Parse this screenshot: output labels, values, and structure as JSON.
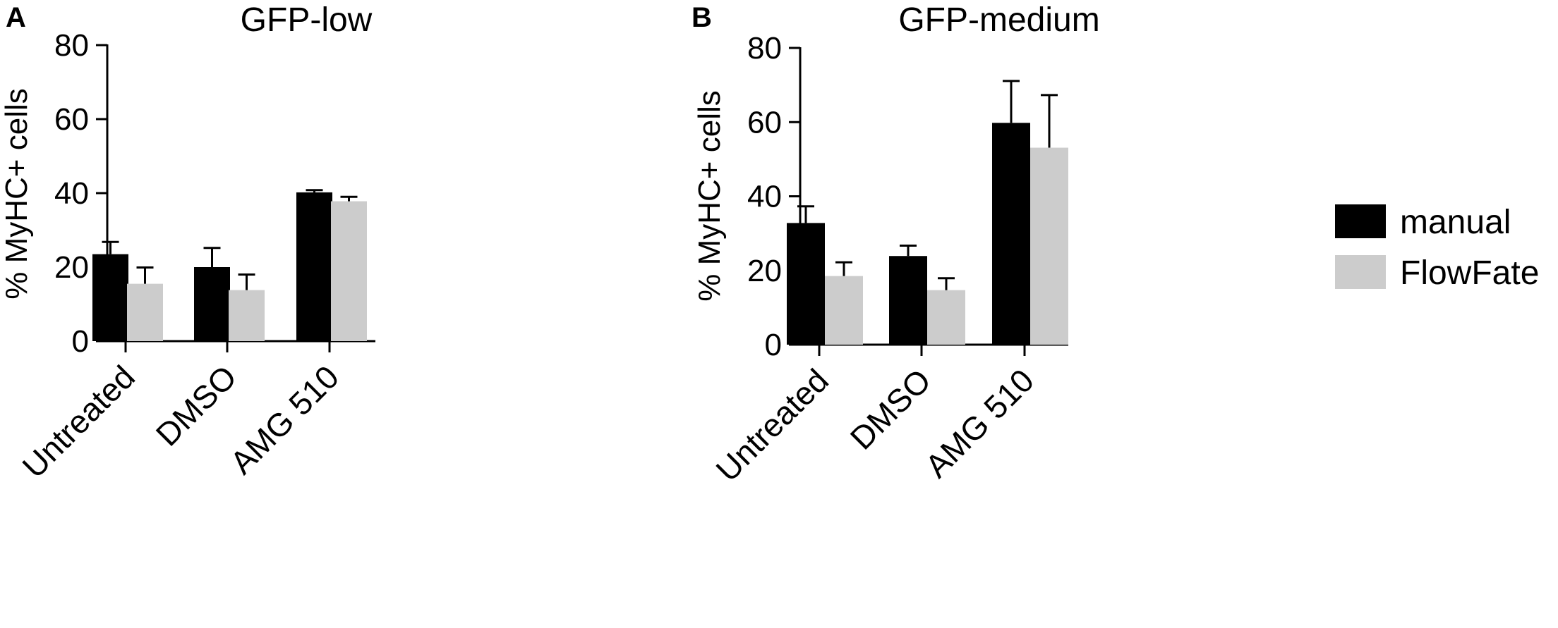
{
  "chart_data": [
    {
      "panel_label": "A",
      "type": "bar",
      "title": "GFP-low",
      "xlabel": "",
      "ylabel": "% MyHC+ cells",
      "ylim": [
        0,
        80
      ],
      "yticks": [
        "0",
        "20",
        "40",
        "60",
        "80"
      ],
      "categories": [
        "Untreated",
        "DMSO",
        "AMG 510"
      ],
      "series": [
        {
          "name": "manual",
          "color": "#000000",
          "values": [
            23.5,
            20,
            40.2
          ],
          "errors": [
            3.3,
            5.2,
            0.6
          ]
        },
        {
          "name": "FlowFate",
          "color": "#cccccc",
          "values": [
            15.5,
            13.8,
            37.8
          ],
          "errors": [
            4.4,
            4.2,
            1.2
          ]
        }
      ]
    },
    {
      "panel_label": "B",
      "type": "bar",
      "title": "GFP-medium",
      "xlabel": "",
      "ylabel": "% MyHC+ cells",
      "ylim": [
        0,
        80
      ],
      "yticks": [
        "0",
        "20",
        "40",
        "60",
        "80"
      ],
      "categories": [
        "Untreated",
        "DMSO",
        "AMG 510"
      ],
      "series": [
        {
          "name": "manual",
          "color": "#000000",
          "values": [
            32.8,
            23.9,
            59.8
          ],
          "errors": [
            4.5,
            2.8,
            11.3
          ]
        },
        {
          "name": "FlowFate",
          "color": "#cccccc",
          "values": [
            18.5,
            14.7,
            53.1
          ],
          "errors": [
            3.7,
            3.2,
            14.2
          ]
        }
      ]
    }
  ],
  "legend": {
    "position": "right",
    "items": [
      {
        "name": "manual",
        "color": "#000000"
      },
      {
        "name": "FlowFate",
        "color": "#cccccc"
      }
    ]
  }
}
